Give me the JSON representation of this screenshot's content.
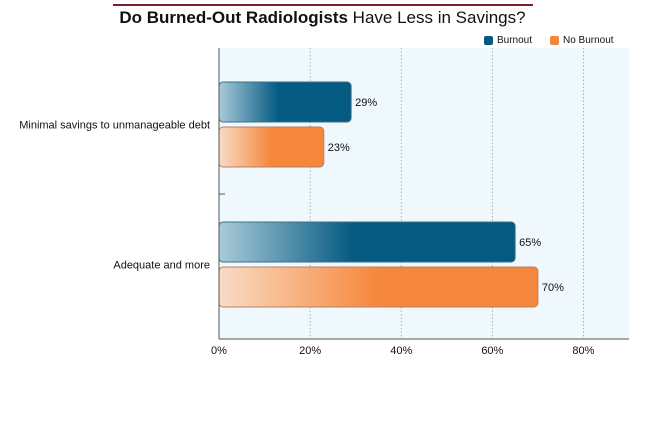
{
  "chart_data": {
    "type": "bar",
    "orientation": "horizontal",
    "title": "Do Burned-Out Radiologists Have Less in Savings?",
    "title_parts": {
      "bold": "Do Burned-Out Radiologists",
      "regular": " Have Less in Savings?"
    },
    "categories": [
      "Minimal savings to unmanageable debt",
      "Adequate and more"
    ],
    "series": [
      {
        "name": "Burnout",
        "values": [
          29,
          65
        ],
        "labels": [
          "29%",
          "65%"
        ],
        "color": "#055a82"
      },
      {
        "name": "No Burnout",
        "values": [
          23,
          70
        ],
        "labels": [
          "23%",
          "70%"
        ],
        "color": "#f5873c"
      }
    ],
    "xlim": [
      0,
      90
    ],
    "xticks": [
      0,
      20,
      40,
      60,
      80
    ],
    "xtick_labels": [
      "0%",
      "20%",
      "40%",
      "60%",
      "80%"
    ],
    "grid": true,
    "legend": "top-right",
    "plot_background": "#eef8fd"
  }
}
